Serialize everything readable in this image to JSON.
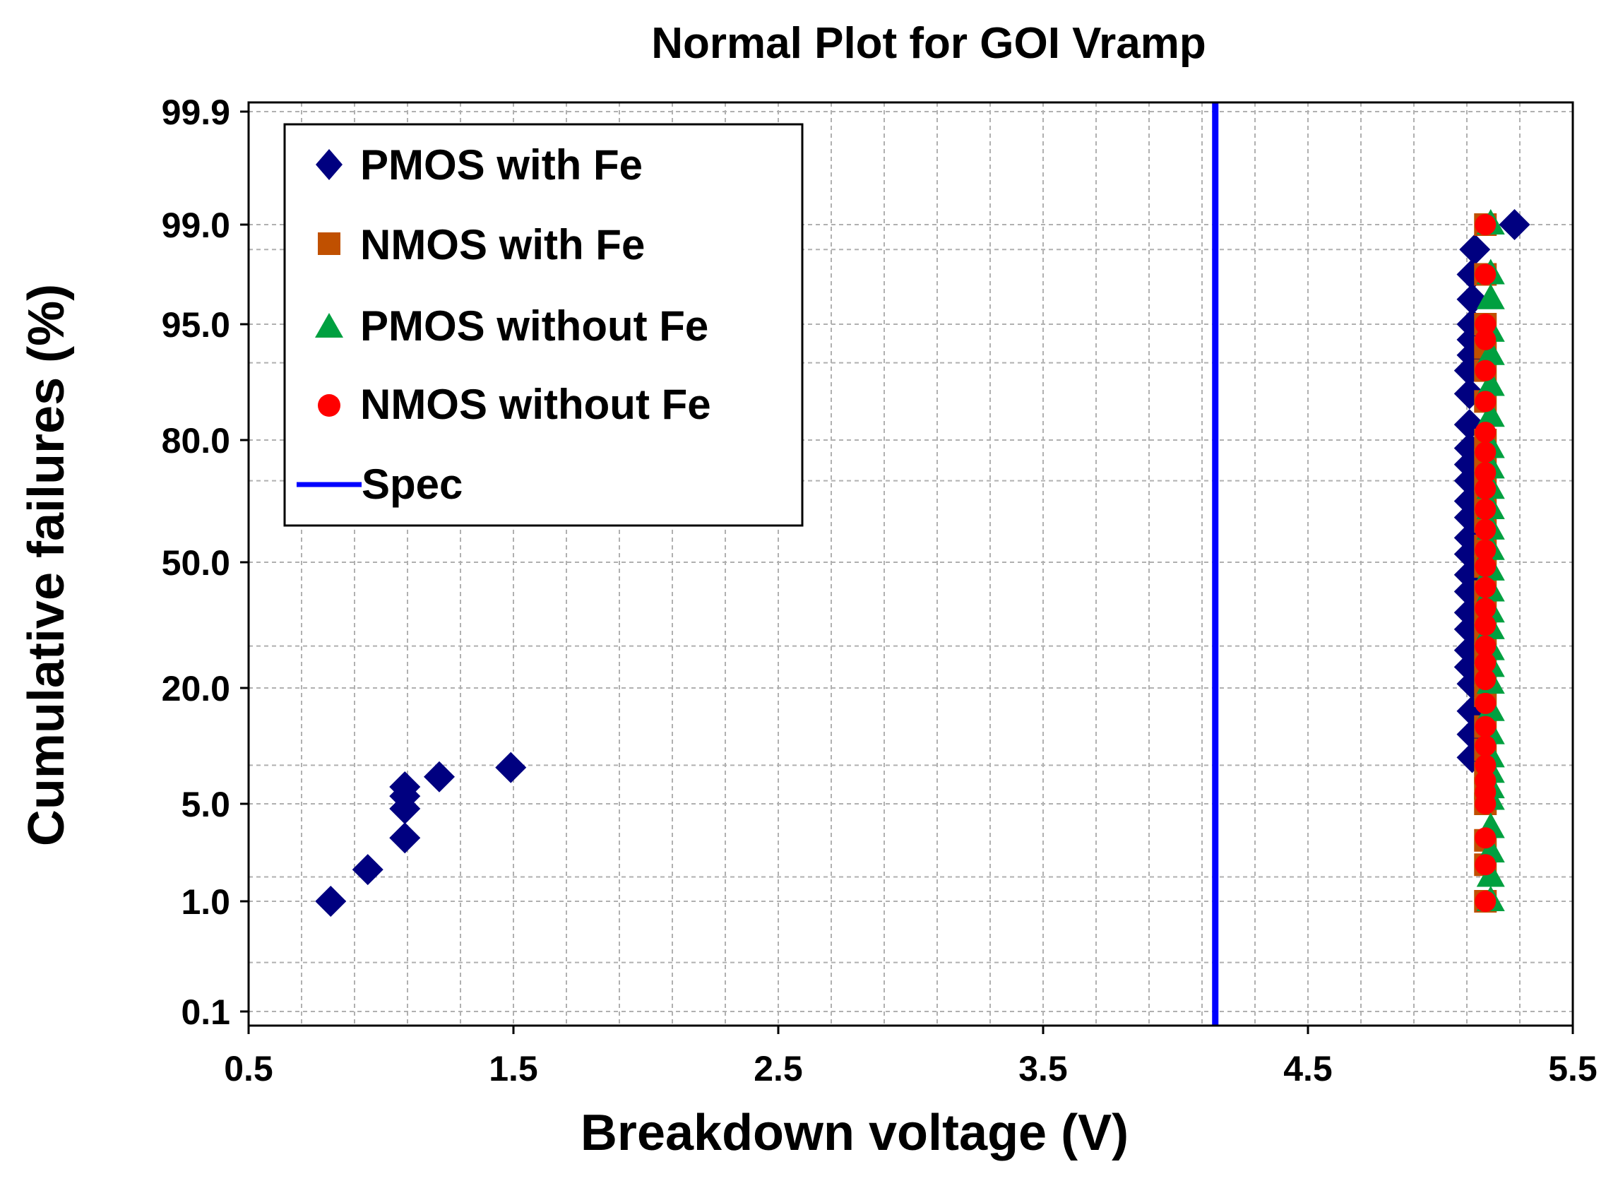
{
  "chart_data": {
    "type": "scatter",
    "title": "Normal Plot for GOI Vramp",
    "xlabel": "Breakdown voltage (V)",
    "ylabel": "Cumulative  failures  (%)",
    "y_scale": "normal-probability",
    "xlim": [
      0.5,
      5.5
    ],
    "ylim": [
      0.1,
      99.9
    ],
    "x_ticks": [
      0.5,
      1.5,
      2.5,
      3.5,
      4.5,
      5.5
    ],
    "x_tick_labels": [
      "0.5",
      "1.5",
      "2.5",
      "3.5",
      "4.5",
      "5.5"
    ],
    "y_ticks": [
      0.1,
      1.0,
      5.0,
      20.0,
      50.0,
      80.0,
      95.0,
      99.0,
      99.9
    ],
    "y_tick_labels": [
      "0.1",
      "1.0",
      "5.0",
      "20.0",
      "50.0",
      "80.0",
      "95.0",
      "99.0",
      "99.9"
    ],
    "grid": true,
    "legend_position": "top-left",
    "series": [
      {
        "name": "PMOS with Fe",
        "marker": "diamond",
        "color": "#000080",
        "x": [
          0.81,
          0.95,
          1.09,
          1.09,
          1.09,
          1.09,
          1.22,
          1.49,
          5.12,
          5.12,
          5.12,
          5.12,
          5.11,
          5.11,
          5.11,
          5.11,
          5.11,
          5.11,
          5.11,
          5.11,
          5.11,
          5.11,
          5.11,
          5.11,
          5.11,
          5.11,
          5.11,
          5.11,
          5.12,
          5.12,
          5.12,
          5.12,
          5.12,
          5.13,
          5.28
        ],
        "y": [
          1.0,
          2.3,
          3.6,
          4.8,
          6.0,
          7.2,
          8.5,
          9.7,
          11,
          14,
          17,
          21,
          25,
          29,
          34,
          38,
          43,
          47,
          52,
          56,
          61,
          65,
          70,
          74,
          78,
          82,
          86,
          89,
          91,
          93,
          95,
          96,
          97,
          98,
          99
        ]
      },
      {
        "name": "NMOS with Fe",
        "marker": "square",
        "color": "#C05000",
        "x": [
          5.17,
          5.17,
          5.17,
          5.17,
          5.17,
          5.17,
          5.17,
          5.17,
          5.17,
          5.17,
          5.17,
          5.17,
          5.17,
          5.17,
          5.17,
          5.17,
          5.17,
          5.17,
          5.17,
          5.17,
          5.17,
          5.17,
          5.17,
          5.17,
          5.17,
          5.17,
          5.17
        ],
        "y": [
          1.0,
          2.5,
          3.5,
          5,
          7,
          9,
          12,
          15,
          19,
          23,
          28,
          33,
          38,
          43,
          49,
          54,
          60,
          65,
          70,
          75,
          80,
          85,
          89,
          92,
          95,
          97,
          99
        ]
      },
      {
        "name": "PMOS without Fe",
        "marker": "triangle",
        "color": "#00A040",
        "x": [
          5.19,
          5.19,
          5.19,
          5.19,
          5.19,
          5.19,
          5.19,
          5.19,
          5.19,
          5.19,
          5.19,
          5.19,
          5.19,
          5.19,
          5.19,
          5.19,
          5.19,
          5.19,
          5.19,
          5.19,
          5.19,
          5.19,
          5.19,
          5.19,
          5.19,
          5.19,
          5.19,
          5.19,
          5.19,
          5.19
        ],
        "y": [
          1.0,
          2.0,
          3.0,
          4.0,
          5.5,
          7,
          9,
          11,
          14,
          17,
          21,
          25,
          29,
          34,
          38,
          43,
          48,
          53,
          58,
          63,
          68,
          73,
          78,
          83,
          87,
          91,
          94,
          96,
          97,
          99
        ]
      },
      {
        "name": "NMOS without Fe",
        "marker": "circle",
        "color": "#FF0000",
        "x": [
          5.17,
          5.17,
          5.17,
          5.17,
          5.17,
          5.17,
          5.17,
          5.17,
          5.17,
          5.17,
          5.17,
          5.17,
          5.17,
          5.17,
          5.17,
          5.17,
          5.17,
          5.17,
          5.17,
          5.17,
          5.17,
          5.17,
          5.17,
          5.17,
          5.17,
          5.17,
          5.17,
          5.17,
          5.17,
          5.17
        ],
        "y": [
          1.0,
          2.5,
          3.6,
          5,
          6.5,
          8,
          10,
          12.5,
          15,
          18,
          22,
          26,
          30,
          35,
          39,
          44,
          49,
          53,
          58,
          63,
          68,
          72,
          77,
          81,
          85,
          89,
          93,
          95,
          97,
          99
        ]
      }
    ],
    "spec_line": {
      "name": "Spec",
      "x": 4.15,
      "color": "#0000FF"
    }
  }
}
